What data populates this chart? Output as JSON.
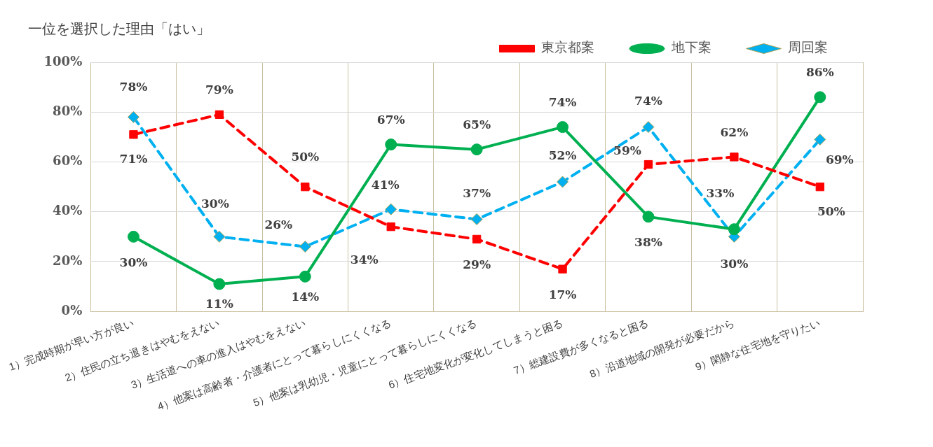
{
  "chart_data": {
    "type": "line",
    "title": "一位を選択した理由「はい」",
    "categories": [
      "1）完成時期が早い方が良い",
      "2）住民の立ち退きはやむをえない",
      "3）生活道への車の進入はやむをえない",
      "4）他案は高齢者・介護者にとって暮らしにくくなる",
      "5）他案は乳幼児・児童にとって暮らしにくくなる",
      "6）住宅地変化が変化してしまうと困る",
      "7）総建設費が多くなると困る",
      "8）沿道地域の開発が必要だから",
      "9）閑静な住宅地を守りたい"
    ],
    "series": [
      {
        "name": "東京都案",
        "color": "#ff0000",
        "marker": "square",
        "line_style": "dashed",
        "values": [
          71,
          79,
          50,
          34,
          29,
          17,
          59,
          62,
          50
        ],
        "value_labels": [
          "71%",
          "79%",
          "50%",
          "34%",
          "29%",
          "17%",
          "59%",
          "62%",
          "50%"
        ]
      },
      {
        "name": "地下案",
        "color": "#00b050",
        "marker": "circle",
        "line_style": "solid",
        "values": [
          30,
          11,
          14,
          67,
          65,
          74,
          38,
          33,
          86
        ],
        "value_labels": [
          "30%",
          "11%",
          "14%",
          "67%",
          "65%",
          "74%",
          "38%",
          "33%",
          "86%"
        ]
      },
      {
        "name": "周回案",
        "color": "#00b0f0",
        "marker": "diamond",
        "line_style": "dashed",
        "values": [
          78,
          30,
          26,
          41,
          37,
          52,
          74,
          30,
          69
        ],
        "value_labels": [
          "78%",
          "30%",
          "26%",
          "41%",
          "37%",
          "52%",
          "74%",
          "30%",
          "69%"
        ]
      }
    ],
    "ylim": [
      0,
      100
    ],
    "yticks": [
      {
        "value": 0,
        "label": "0%"
      },
      {
        "value": 20,
        "label": "20%"
      },
      {
        "value": 40,
        "label": "40%"
      },
      {
        "value": 60,
        "label": "60%"
      },
      {
        "value": 80,
        "label": "80%"
      },
      {
        "value": 100,
        "label": "100%"
      }
    ],
    "grid": true,
    "legend": "top right"
  }
}
